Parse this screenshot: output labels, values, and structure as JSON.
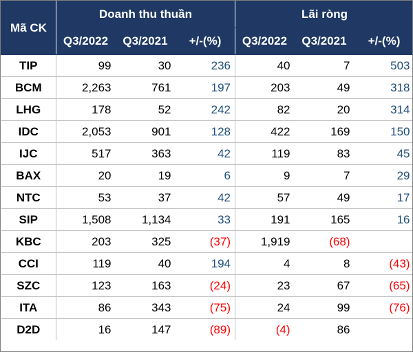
{
  "header": {
    "ticker_label": "Mã CK",
    "revenue_group": "Doanh thu thuần",
    "profit_group": "Lãi ròng",
    "col_q3_2022": "Q3/2022",
    "col_q3_2021": "Q3/2021",
    "col_change": "+/-(%)"
  },
  "rows": [
    {
      "ticker": "TIP",
      "rev_2022": "99",
      "rev_2021": "30",
      "rev_chg": "236",
      "rev_chg_sign": "pos",
      "np_2022": "40",
      "np_2021": "7",
      "np_chg": "503",
      "np_chg_sign": "pos"
    },
    {
      "ticker": "BCM",
      "rev_2022": "2,263",
      "rev_2021": "761",
      "rev_chg": "197",
      "rev_chg_sign": "pos",
      "np_2022": "203",
      "np_2021": "49",
      "np_chg": "318",
      "np_chg_sign": "pos"
    },
    {
      "ticker": "LHG",
      "rev_2022": "178",
      "rev_2021": "52",
      "rev_chg": "242",
      "rev_chg_sign": "pos",
      "np_2022": "82",
      "np_2021": "20",
      "np_chg": "314",
      "np_chg_sign": "pos"
    },
    {
      "ticker": "IDC",
      "rev_2022": "2,053",
      "rev_2021": "901",
      "rev_chg": "128",
      "rev_chg_sign": "pos",
      "np_2022": "422",
      "np_2021": "169",
      "np_chg": "150",
      "np_chg_sign": "pos"
    },
    {
      "ticker": "IJC",
      "rev_2022": "517",
      "rev_2021": "363",
      "rev_chg": "42",
      "rev_chg_sign": "pos",
      "np_2022": "119",
      "np_2021": "83",
      "np_chg": "45",
      "np_chg_sign": "pos"
    },
    {
      "ticker": "BAX",
      "rev_2022": "20",
      "rev_2021": "19",
      "rev_chg": "6",
      "rev_chg_sign": "pos",
      "np_2022": "9",
      "np_2021": "7",
      "np_chg": "29",
      "np_chg_sign": "pos"
    },
    {
      "ticker": "NTC",
      "rev_2022": "53",
      "rev_2021": "37",
      "rev_chg": "42",
      "rev_chg_sign": "pos",
      "np_2022": "57",
      "np_2021": "49",
      "np_chg": "17",
      "np_chg_sign": "pos"
    },
    {
      "ticker": "SIP",
      "rev_2022": "1,508",
      "rev_2021": "1,134",
      "rev_chg": "33",
      "rev_chg_sign": "pos",
      "np_2022": "191",
      "np_2021": "165",
      "np_chg": "16",
      "np_chg_sign": "pos"
    },
    {
      "ticker": "KBC",
      "rev_2022": "203",
      "rev_2021": "325",
      "rev_chg": "(37)",
      "rev_chg_sign": "neg",
      "np_2022": "1,919",
      "np_2021": "(68)",
      "np_2021_sign": "neg",
      "np_chg": "",
      "np_chg_sign": "pos"
    },
    {
      "ticker": "CCI",
      "rev_2022": "119",
      "rev_2021": "40",
      "rev_chg": "194",
      "rev_chg_sign": "pos",
      "np_2022": "4",
      "np_2021": "8",
      "np_chg": "(43)",
      "np_chg_sign": "neg"
    },
    {
      "ticker": "SZC",
      "rev_2022": "123",
      "rev_2021": "163",
      "rev_chg": "(24)",
      "rev_chg_sign": "neg",
      "np_2022": "23",
      "np_2021": "67",
      "np_chg": "(65)",
      "np_chg_sign": "neg"
    },
    {
      "ticker": "ITA",
      "rev_2022": "86",
      "rev_2021": "343",
      "rev_chg": "(75)",
      "rev_chg_sign": "neg",
      "np_2022": "24",
      "np_2021": "99",
      "np_chg": "(76)",
      "np_chg_sign": "neg"
    },
    {
      "ticker": "D2D",
      "rev_2022": "16",
      "rev_2021": "147",
      "rev_chg": "(89)",
      "rev_chg_sign": "neg",
      "np_2022": "(4)",
      "np_2022_sign": "neg",
      "np_2021": "86",
      "np_chg": "",
      "np_chg_sign": "pos"
    }
  ],
  "colors": {
    "header_bg": "#1f3864",
    "positive_change": "#1f4e79",
    "negative_value": "#ff0000"
  }
}
